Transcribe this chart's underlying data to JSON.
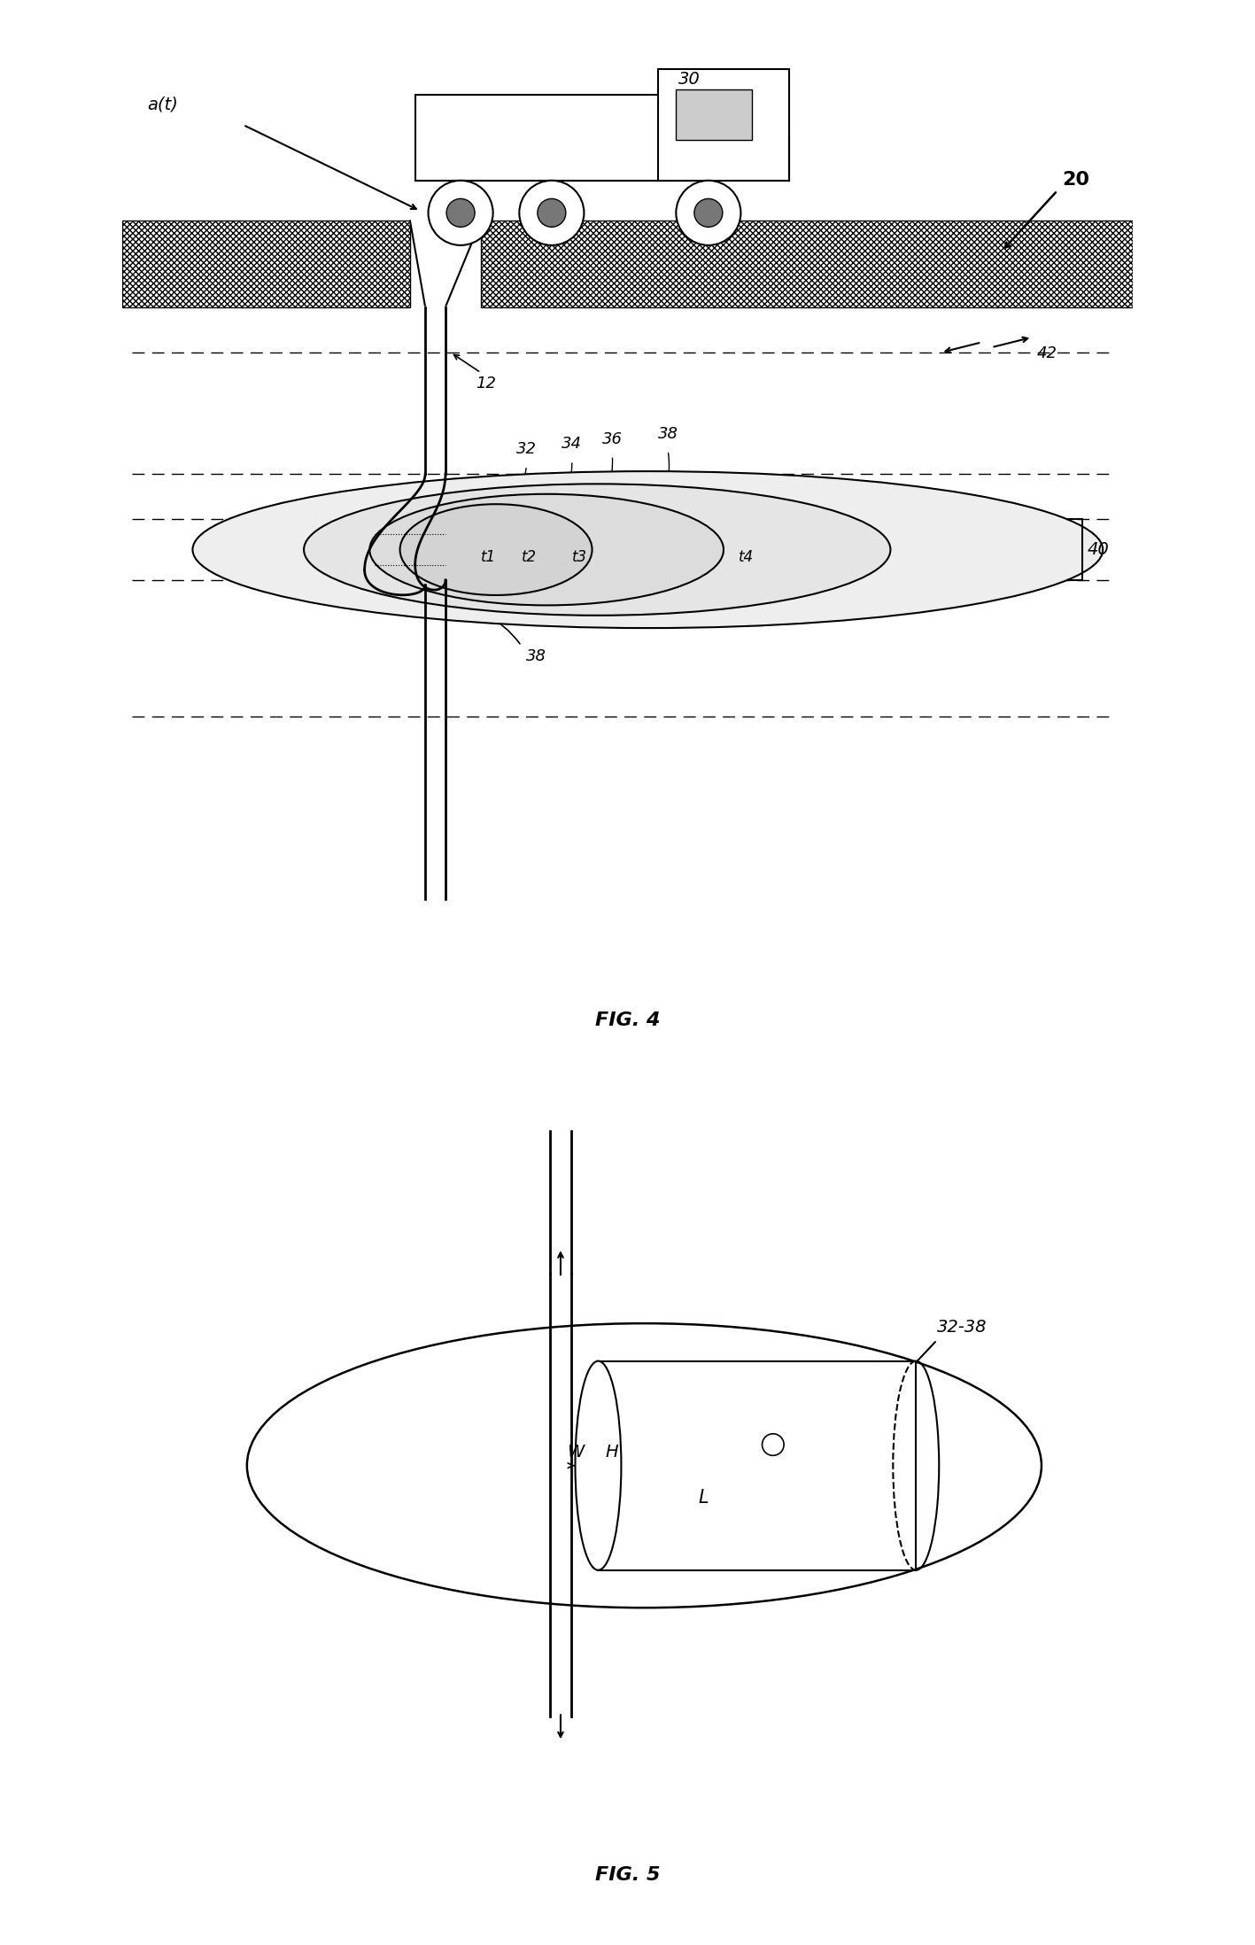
{
  "fig4_caption": "FIG. 4",
  "fig5_caption": "FIG. 5",
  "label_30": "30",
  "label_20": "20",
  "label_12": "12",
  "label_42": "42",
  "label_32": "32",
  "label_34": "34",
  "label_36": "36",
  "label_38": "38",
  "label_38b": "38",
  "label_40": "40",
  "label_t1": "t1",
  "label_t2": "t2",
  "label_t3": "t3",
  "label_t4": "t4",
  "label_at": "a(t)",
  "label_32_38": "32-38",
  "label_W": "W",
  "label_H": "H",
  "label_L": "L",
  "bg_color": "#ffffff",
  "line_color": "#000000",
  "hatch_color": "#000000",
  "fs": 13,
  "fi": 13,
  "caption_fs": 16,
  "lw": 1.5
}
